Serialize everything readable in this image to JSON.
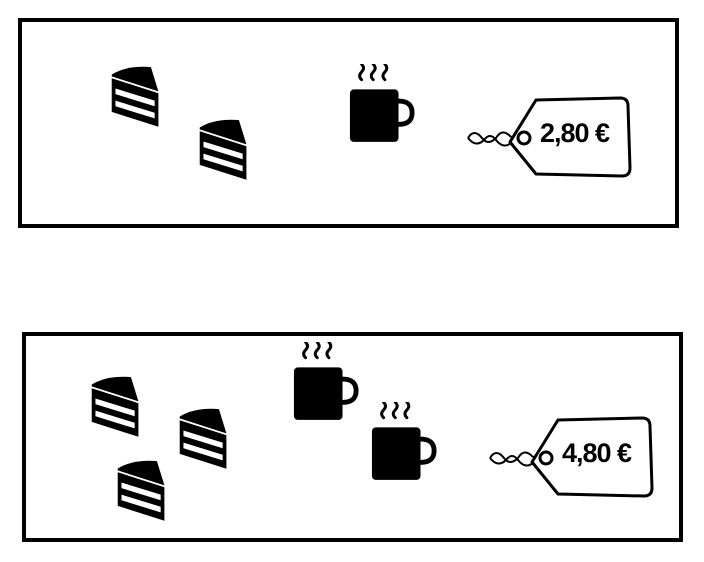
{
  "offers": [
    {
      "cake_count": 2,
      "coffee_count": 1,
      "price": "2,80 €"
    },
    {
      "cake_count": 3,
      "coffee_count": 2,
      "price": "4,80 €"
    }
  ],
  "icons": {
    "cake": "cake-slice-icon",
    "coffee": "coffee-mug-icon",
    "tag": "price-tag-icon"
  },
  "colors": {
    "ink": "#000000",
    "background": "#ffffff"
  }
}
